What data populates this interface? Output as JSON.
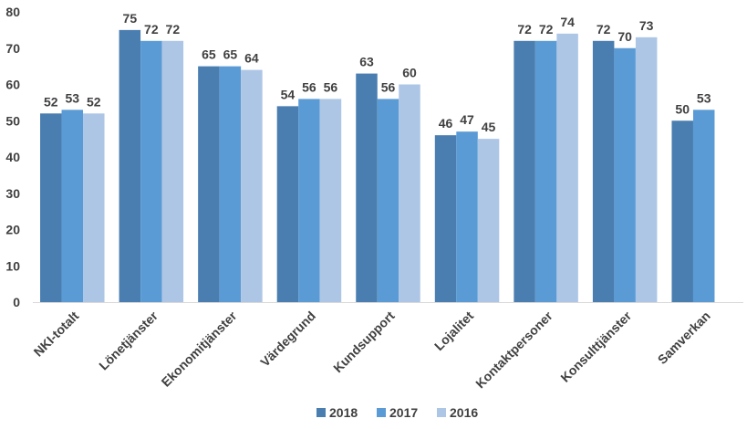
{
  "chart_data": {
    "type": "bar",
    "title": "",
    "xlabel": "",
    "ylabel": "",
    "ylim": [
      0,
      80
    ],
    "yticks": [
      0,
      10,
      20,
      30,
      40,
      50,
      60,
      70,
      80
    ],
    "grid": false,
    "legend_position": "bottom",
    "categories": [
      "NKI-totalt",
      "Lönetjänster",
      "Ekonomitjänster",
      "Värdegrund",
      "Kundsupport",
      "Lojalitet",
      "Kontaktpersoner",
      "Konsulttjänster",
      "Samverkan"
    ],
    "series": [
      {
        "name": "2018",
        "color": "#4a7eb0",
        "values": [
          52,
          75,
          65,
          54,
          63,
          46,
          72,
          72,
          50
        ]
      },
      {
        "name": "2017",
        "color": "#5b9bd5",
        "values": [
          53,
          72,
          65,
          56,
          56,
          47,
          72,
          70,
          53
        ]
      },
      {
        "name": "2016",
        "color": "#adc6e6",
        "values": [
          52,
          72,
          64,
          56,
          60,
          45,
          74,
          73,
          null
        ]
      }
    ]
  }
}
